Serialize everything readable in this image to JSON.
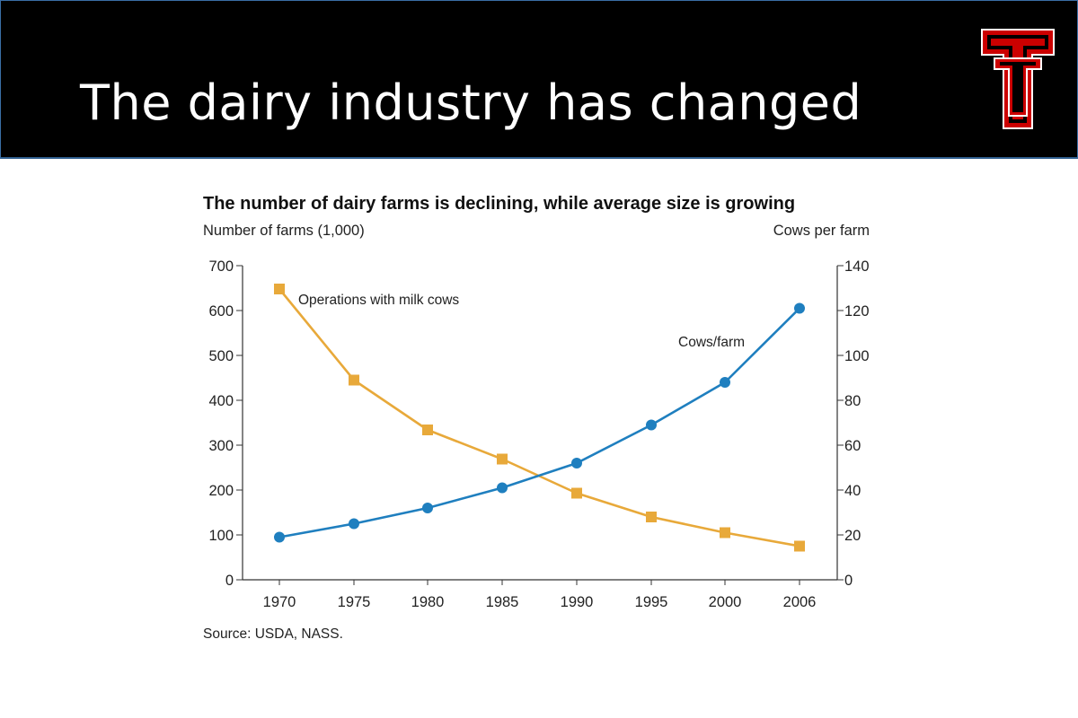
{
  "slide": {
    "title": "The dairy industry has changed",
    "header_bg": "#000000",
    "logo_icon": "double-t-logo",
    "logo_colors": {
      "primary": "#cc0000",
      "outline": "#000000",
      "accent": "#ffffff"
    }
  },
  "chart_data": {
    "type": "line",
    "title": "The number of dairy farms is declining, while average size is growing",
    "left_axis_label": "Number of farms (1,000)",
    "right_axis_label": "Cows per farm",
    "source": "Source: USDA, NASS.",
    "categories": [
      "1970",
      "1975",
      "1980",
      "1985",
      "1990",
      "1995",
      "2000",
      "2006"
    ],
    "left_axis": {
      "ylim": [
        0,
        700
      ],
      "ticks": [
        0,
        100,
        200,
        300,
        400,
        500,
        600,
        700
      ]
    },
    "right_axis": {
      "ylim": [
        0,
        140
      ],
      "ticks": [
        0,
        20,
        40,
        60,
        80,
        100,
        120,
        140
      ]
    },
    "grid": false,
    "series": [
      {
        "name": "Operations with milk cows",
        "axis": "left",
        "marker": "square",
        "color": "#e8a93a",
        "values": [
          648,
          445,
          334,
          269,
          193,
          140,
          105,
          75
        ]
      },
      {
        "name": "Cows/farm",
        "axis": "right",
        "marker": "circle",
        "color": "#1f7fbf",
        "values": [
          19,
          25,
          32,
          41,
          52,
          69,
          88,
          121
        ]
      }
    ]
  }
}
